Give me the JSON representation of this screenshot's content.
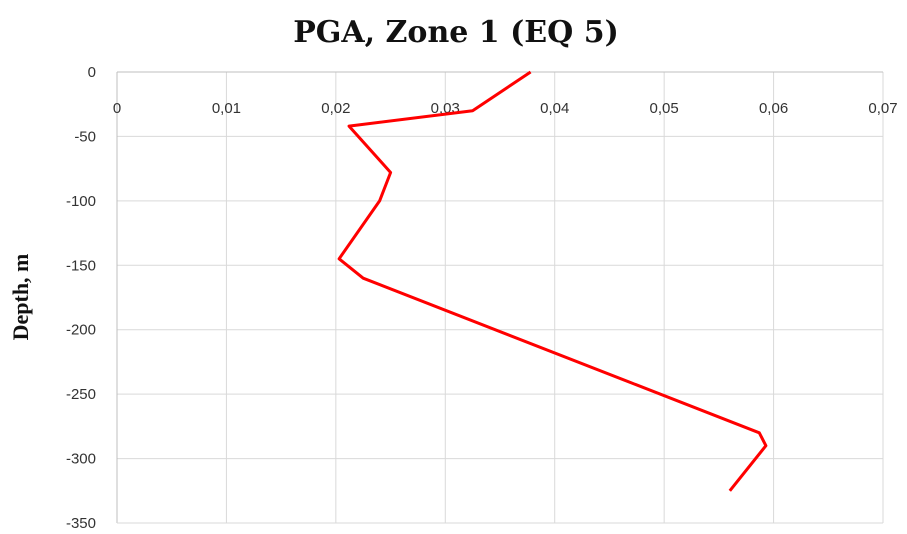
{
  "chart_data": {
    "type": "line",
    "title": "PGA, Zone 1 (EQ  5)",
    "xlabel": "",
    "ylabel": "Depth, m",
    "xlim": [
      0,
      0.07
    ],
    "ylim": [
      -350,
      0
    ],
    "x_ticks": [
      "0",
      "0,01",
      "0,02",
      "0,03",
      "0,04",
      "0,05",
      "0,06",
      "0,07"
    ],
    "y_ticks": [
      "0",
      "-50",
      "-100",
      "-150",
      "-200",
      "-250",
      "-300",
      "-350"
    ],
    "grid": true,
    "legend": "none",
    "series_color": "#ff0000",
    "series": [
      {
        "x": [
          0.0378,
          0.0325,
          0.0212,
          0.025,
          0.024,
          0.0203,
          0.0225,
          0.0587,
          0.0593,
          0.056
        ],
        "y": [
          0,
          -30,
          -42,
          -78,
          -100,
          -145,
          -160,
          -280,
          -290,
          -325
        ]
      }
    ]
  }
}
